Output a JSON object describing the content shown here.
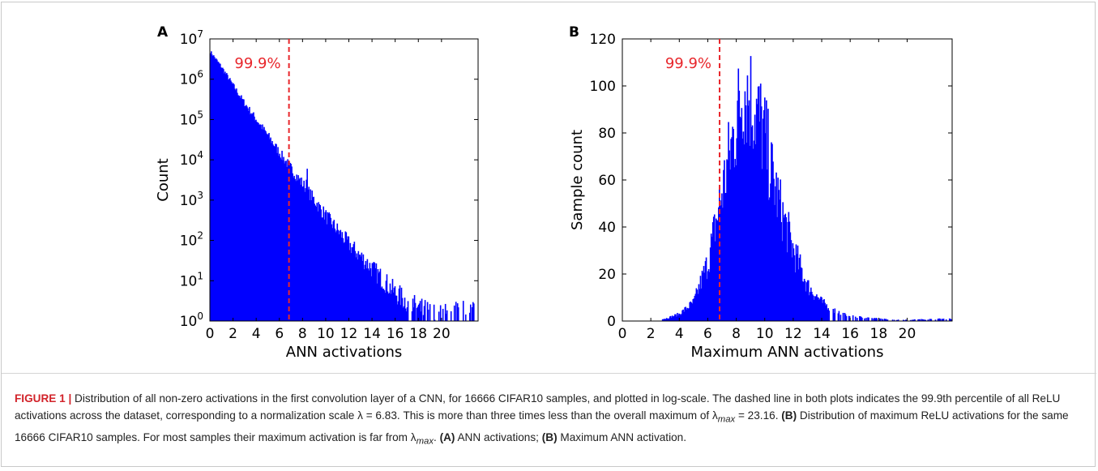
{
  "chart_data": [
    {
      "panel": "A",
      "type": "bar",
      "xlabel": "ANN activations",
      "ylabel": "Count",
      "y_scale": "log",
      "xlim": [
        0,
        23.16
      ],
      "ylim": [
        1,
        10000000
      ],
      "x_ticks": [
        0,
        2,
        4,
        6,
        8,
        10,
        12,
        14,
        16,
        18,
        20
      ],
      "y_ticks": [
        1,
        10,
        100,
        1000,
        10000,
        100000,
        1000000,
        10000000
      ],
      "y_tick_labels": [
        "10^0",
        "10^1",
        "10^2",
        "10^3",
        "10^4",
        "10^5",
        "10^6",
        "10^7"
      ],
      "series": [
        {
          "color": "#0000ff",
          "x": [
            0,
            1,
            2,
            3,
            4,
            5,
            6,
            7,
            8,
            9,
            10,
            11,
            12,
            13,
            14,
            15,
            16,
            17,
            18,
            19,
            20,
            21,
            22,
            23
          ],
          "values": [
            5000000,
            2000000,
            700000,
            250000,
            100000,
            40000,
            15000,
            6000,
            2500,
            1000,
            400,
            180,
            80,
            40,
            20,
            10,
            5,
            3,
            2,
            1.5,
            1.2,
            1.5,
            1.5,
            2
          ]
        }
      ],
      "annotation": {
        "text": "99.9%",
        "x": 6.83,
        "color": "#e8262b"
      },
      "grid": false
    },
    {
      "panel": "B",
      "type": "bar",
      "xlabel": "Maximum ANN activations",
      "ylabel": "Sample count",
      "y_scale": "linear",
      "xlim": [
        0,
        23.16
      ],
      "ylim": [
        0,
        120
      ],
      "x_ticks": [
        0,
        2,
        4,
        6,
        8,
        10,
        12,
        14,
        16,
        18,
        20
      ],
      "y_ticks": [
        0,
        20,
        40,
        60,
        80,
        100,
        120
      ],
      "series": [
        {
          "color": "#0000ff",
          "x": [
            3,
            4,
            5,
            6,
            6.5,
            7,
            7.5,
            8,
            8.5,
            9,
            9.5,
            10,
            10.5,
            11,
            12,
            13,
            14,
            15,
            16,
            17,
            18,
            19,
            20,
            23
          ],
          "values": [
            1,
            3,
            8,
            25,
            40,
            55,
            70,
            85,
            100,
            95,
            88,
            78,
            62,
            50,
            30,
            15,
            8,
            4,
            2,
            1.5,
            1,
            0.5,
            0.5,
            1
          ]
        }
      ],
      "annotation": {
        "text": "99.9%",
        "x": 6.83,
        "color": "#e8262b"
      },
      "grid": false
    }
  ],
  "caption": {
    "title": "FIGURE 1 |",
    "part1": " Distribution of all non-zero activations in the first convolution layer of a CNN, for 16666 CIFAR10 samples, and plotted in log-scale. The dashed line in both plots indicates the 99.9th percentile of all ReLU activations across the dataset, corresponding to a normalization scale λ = 6.83. This is more than three times less than the overall maximum of λ",
    "sub_max": "max",
    "part2": " = 23.16. ",
    "b_label": "(B)",
    "part3": " Distribution of maximum ReLU activations for the same 16666 CIFAR10 samples. For most samples their maximum activation is far from λ",
    "part4": ". ",
    "a_label": "(A)",
    "part5": " ANN activations; ",
    "b_label2": "(B)",
    "part6": " Maximum ANN activation."
  }
}
